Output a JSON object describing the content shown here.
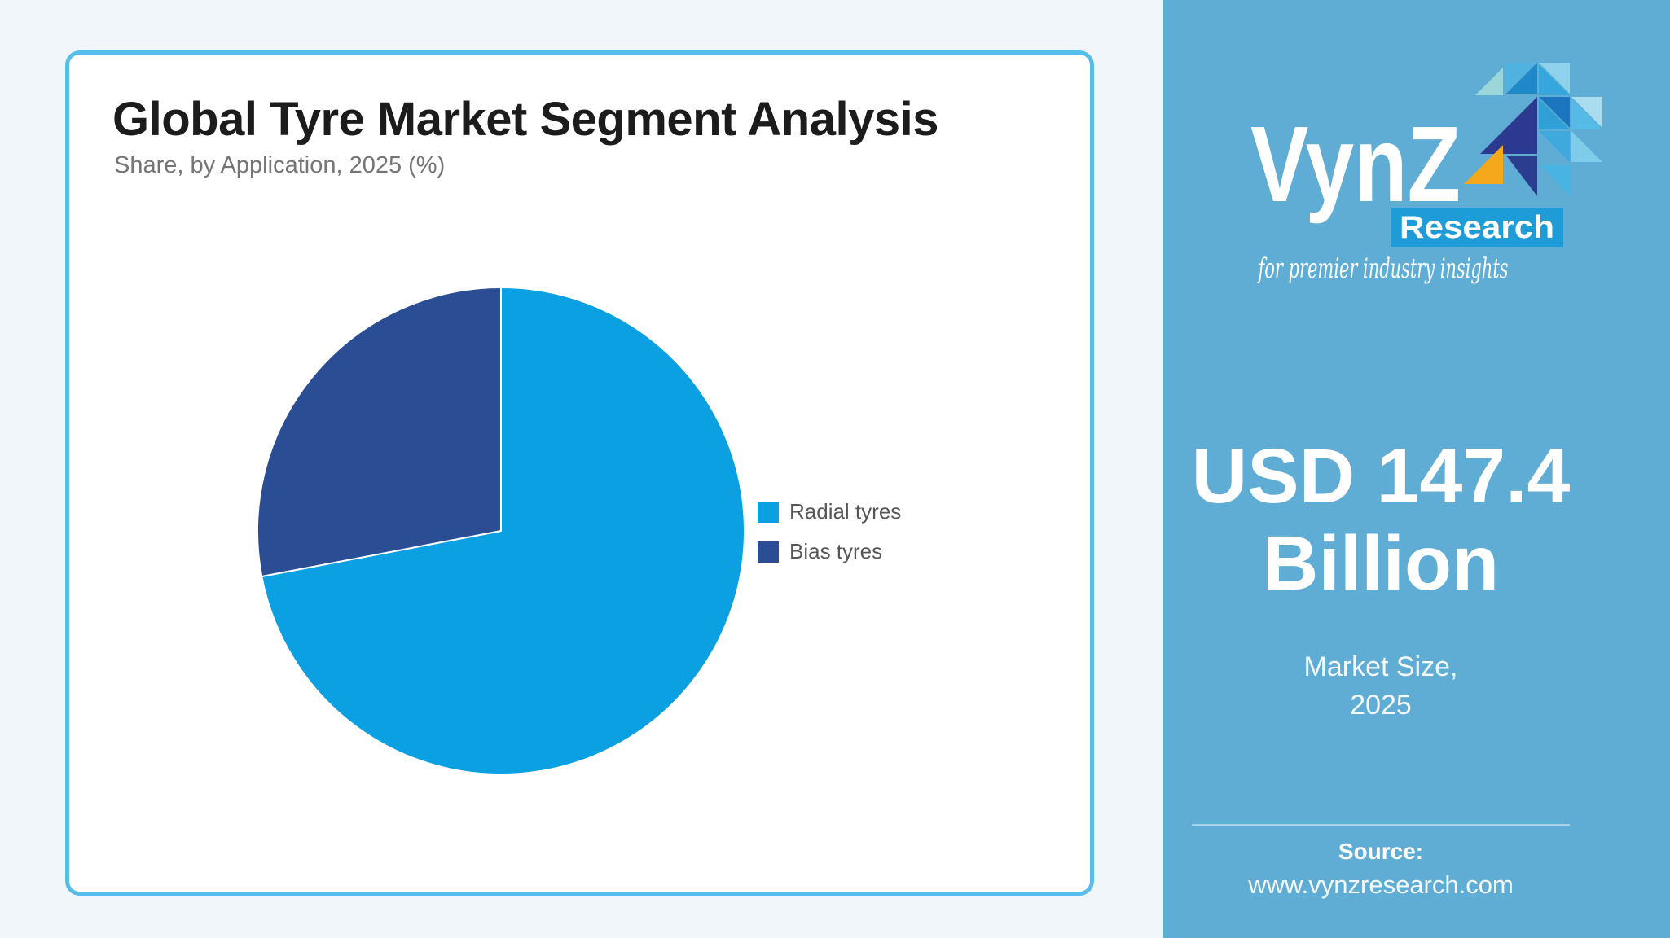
{
  "page": {
    "background_color": "#F1F6FA"
  },
  "card": {
    "title": "Global Tyre Market Segment Analysis",
    "subtitle": "Share, by Application, 2025 (%)",
    "border_color": "#57BDEB"
  },
  "chart_data": {
    "type": "pie",
    "title": "Global Tyre Market Segment Analysis",
    "subtitle": "Share, by Application, 2025 (%)",
    "labels": [
      "Radial tyres",
      "Bias tyres"
    ],
    "values": [
      72,
      28
    ],
    "unit": "%",
    "values_are_estimates": true,
    "colors": [
      "#0AA0E2",
      "#2B4D94"
    ],
    "start_angle_deg": 0,
    "direction": "clockwise",
    "legend_position": "right",
    "data_labels_shown": false
  },
  "sidebar": {
    "background_color": "#5FACD4",
    "logo": {
      "brand": "VynZ",
      "sub_brand": "Research",
      "tagline": "for premier industry insights",
      "accent_yellow": "#F5A81C",
      "research_box_color": "#1E9CD7"
    },
    "market_size": {
      "value": "USD 147.4 Billion",
      "label": "Market Size,",
      "year": "2025"
    },
    "source": {
      "label": "Source:",
      "url": "www.vynzresearch.com"
    }
  }
}
